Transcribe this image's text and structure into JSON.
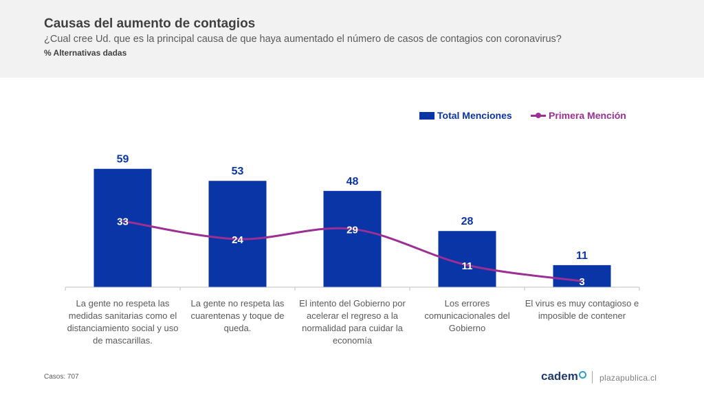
{
  "header": {
    "title": "Causas del aumento de contagios",
    "subtitle": "¿Cual cree Ud. que es la principal causa de que haya aumentado el número de casos de contagios con coronavirus?",
    "note": "% Alternativas dadas"
  },
  "colors": {
    "bar": "#0a35a7",
    "line": "#9b2f94",
    "bar_label": "#0a35a7",
    "inner_label": "#ffffff"
  },
  "chart_data": {
    "type": "bar",
    "categories": [
      "La gente no respeta las medidas sanitarias como el distanciamiento social y uso de mascarillas.",
      "La gente no respeta las cuarentenas y toque de queda.",
      "El intento del Gobierno por acelerar el regreso a la normalidad para cuidar la economía",
      "Los errores comunicacionales del Gobierno",
      "El virus es muy contagioso e imposible de contener"
    ],
    "series": [
      {
        "name": "Total Menciones",
        "type": "bar",
        "values": [
          59,
          53,
          48,
          28,
          11
        ]
      },
      {
        "name": "Primera Mención",
        "type": "line",
        "values": [
          33,
          24,
          29,
          11,
          3
        ]
      }
    ],
    "title": "Causas del aumento de contagios",
    "ylim": [
      0,
      70
    ],
    "grid": false,
    "legend": "top-right"
  },
  "footer": {
    "casos": "Casos: 707",
    "brand": "cadem",
    "site": "plazapublica.cl"
  }
}
